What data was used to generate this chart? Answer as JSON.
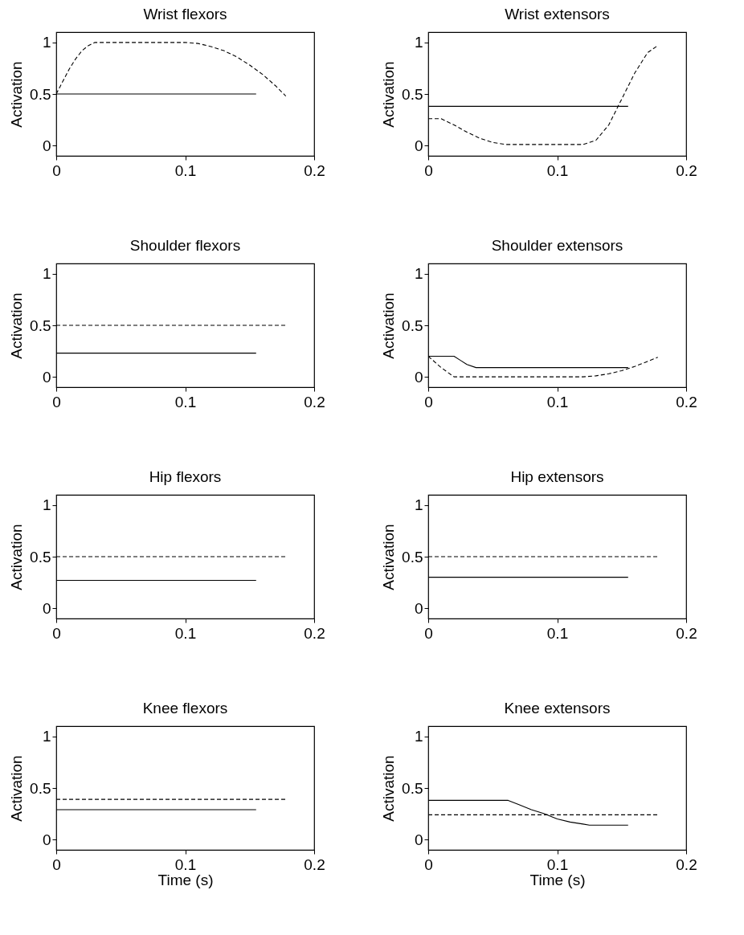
{
  "chart_data": [
    {
      "type": "line",
      "title": "Wrist flexors",
      "ylabel": "Activation",
      "xlim": [
        0,
        0.2
      ],
      "xticks": [
        0,
        0.1,
        0.2
      ],
      "ylim": [
        -0.1,
        1.1
      ],
      "yticks": [
        0,
        0.5,
        1
      ],
      "grid": false,
      "series": [
        {
          "color": "#000000",
          "line_style": "solid",
          "x": [
            0,
            0.155
          ],
          "values": [
            0.5,
            0.5
          ]
        },
        {
          "color": "#000000",
          "line_style": "dashed",
          "x": [
            0,
            0.005,
            0.01,
            0.015,
            0.02,
            0.025,
            0.03,
            0.1,
            0.11,
            0.12,
            0.13,
            0.14,
            0.15,
            0.16,
            0.17,
            0.178
          ],
          "values": [
            0.5,
            0.62,
            0.74,
            0.84,
            0.92,
            0.97,
            1.0,
            1.0,
            0.99,
            0.96,
            0.92,
            0.86,
            0.78,
            0.69,
            0.58,
            0.48
          ]
        }
      ]
    },
    {
      "type": "line",
      "title": "Wrist extensors",
      "ylabel": "Activation",
      "xlim": [
        0,
        0.2
      ],
      "xticks": [
        0,
        0.1,
        0.2
      ],
      "ylim": [
        -0.1,
        1.1
      ],
      "yticks": [
        0,
        0.5,
        1
      ],
      "grid": false,
      "series": [
        {
          "color": "#000000",
          "line_style": "solid",
          "x": [
            0,
            0.155
          ],
          "values": [
            0.38,
            0.38
          ]
        },
        {
          "color": "#000000",
          "line_style": "dashed",
          "x": [
            0,
            0.01,
            0.02,
            0.03,
            0.04,
            0.05,
            0.06,
            0.12,
            0.13,
            0.14,
            0.15,
            0.16,
            0.17,
            0.178
          ],
          "values": [
            0.26,
            0.26,
            0.2,
            0.13,
            0.07,
            0.03,
            0.01,
            0.01,
            0.05,
            0.2,
            0.45,
            0.7,
            0.9,
            0.97
          ]
        }
      ]
    },
    {
      "type": "line",
      "title": "Shoulder flexors",
      "ylabel": "Activation",
      "xlim": [
        0,
        0.2
      ],
      "xticks": [
        0,
        0.1,
        0.2
      ],
      "ylim": [
        -0.1,
        1.1
      ],
      "yticks": [
        0,
        0.5,
        1
      ],
      "grid": false,
      "series": [
        {
          "color": "#000000",
          "line_style": "solid",
          "x": [
            0,
            0.155
          ],
          "values": [
            0.23,
            0.23
          ]
        },
        {
          "color": "#000000",
          "line_style": "dashed",
          "x": [
            0,
            0.178
          ],
          "values": [
            0.5,
            0.5
          ]
        }
      ]
    },
    {
      "type": "line",
      "title": "Shoulder extensors",
      "ylabel": "Activation",
      "xlim": [
        0,
        0.2
      ],
      "xticks": [
        0,
        0.1,
        0.2
      ],
      "ylim": [
        -0.1,
        1.1
      ],
      "yticks": [
        0,
        0.5,
        1
      ],
      "grid": false,
      "series": [
        {
          "color": "#000000",
          "line_style": "solid",
          "x": [
            0,
            0.02,
            0.025,
            0.03,
            0.037,
            0.155
          ],
          "values": [
            0.2,
            0.2,
            0.16,
            0.12,
            0.09,
            0.09
          ]
        },
        {
          "color": "#000000",
          "line_style": "dashed",
          "x": [
            0,
            0.01,
            0.02,
            0.12,
            0.13,
            0.14,
            0.15,
            0.16,
            0.17,
            0.178
          ],
          "values": [
            0.2,
            0.09,
            0.0,
            0.0,
            0.01,
            0.03,
            0.06,
            0.1,
            0.15,
            0.19
          ]
        }
      ]
    },
    {
      "type": "line",
      "title": "Hip flexors",
      "ylabel": "Activation",
      "xlim": [
        0,
        0.2
      ],
      "xticks": [
        0,
        0.1,
        0.2
      ],
      "ylim": [
        -0.1,
        1.1
      ],
      "yticks": [
        0,
        0.5,
        1
      ],
      "grid": false,
      "series": [
        {
          "color": "#000000",
          "line_style": "solid",
          "x": [
            0,
            0.155
          ],
          "values": [
            0.27,
            0.27
          ]
        },
        {
          "color": "#000000",
          "line_style": "dashed",
          "x": [
            0,
            0.178
          ],
          "values": [
            0.5,
            0.5
          ]
        }
      ]
    },
    {
      "type": "line",
      "title": "Hip extensors",
      "ylabel": "Activation",
      "xlim": [
        0,
        0.2
      ],
      "xticks": [
        0,
        0.1,
        0.2
      ],
      "ylim": [
        -0.1,
        1.1
      ],
      "yticks": [
        0,
        0.5,
        1
      ],
      "grid": false,
      "series": [
        {
          "color": "#000000",
          "line_style": "solid",
          "x": [
            0,
            0.155
          ],
          "values": [
            0.3,
            0.3
          ]
        },
        {
          "color": "#000000",
          "line_style": "dashed",
          "x": [
            0,
            0.178
          ],
          "values": [
            0.5,
            0.5
          ]
        }
      ]
    },
    {
      "type": "line",
      "title": "Knee flexors",
      "xlabel": "Time (s)",
      "ylabel": "Activation",
      "xlim": [
        0,
        0.2
      ],
      "xticks": [
        0,
        0.1,
        0.2
      ],
      "ylim": [
        -0.1,
        1.1
      ],
      "yticks": [
        0,
        0.5,
        1
      ],
      "grid": false,
      "series": [
        {
          "color": "#000000",
          "line_style": "solid",
          "x": [
            0,
            0.155
          ],
          "values": [
            0.29,
            0.29
          ]
        },
        {
          "color": "#000000",
          "line_style": "dashed",
          "x": [
            0,
            0.178
          ],
          "values": [
            0.39,
            0.39
          ]
        }
      ]
    },
    {
      "type": "line",
      "title": "Knee extensors",
      "xlabel": "Time (s)",
      "ylabel": "Activation",
      "xlim": [
        0,
        0.2
      ],
      "xticks": [
        0,
        0.1,
        0.2
      ],
      "ylim": [
        -0.1,
        1.1
      ],
      "yticks": [
        0,
        0.5,
        1
      ],
      "grid": false,
      "series": [
        {
          "color": "#000000",
          "line_style": "solid",
          "x": [
            0,
            0.062,
            0.07,
            0.08,
            0.09,
            0.1,
            0.11,
            0.12,
            0.125,
            0.155
          ],
          "values": [
            0.38,
            0.38,
            0.34,
            0.29,
            0.25,
            0.2,
            0.17,
            0.15,
            0.14,
            0.14
          ]
        },
        {
          "color": "#000000",
          "line_style": "dashed",
          "x": [
            0,
            0.178
          ],
          "values": [
            0.24,
            0.24
          ]
        }
      ]
    }
  ]
}
